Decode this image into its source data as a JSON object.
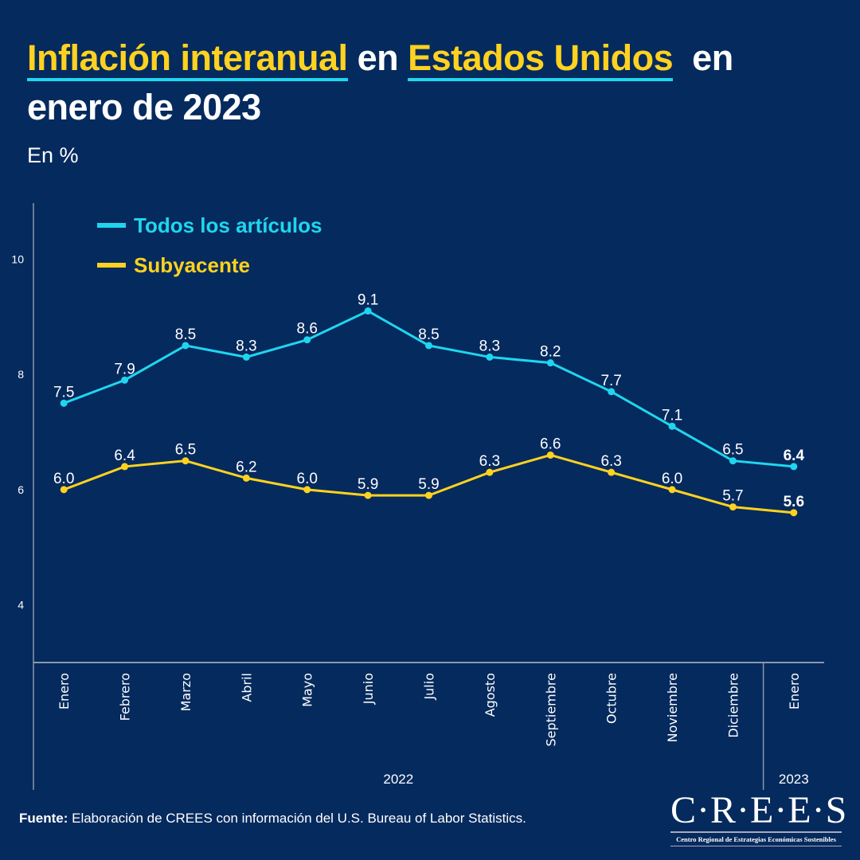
{
  "title": {
    "part1": "Inflación interanual",
    "part2": " en ",
    "part3": "Estados Unidos",
    "part4": "  en",
    "line2": "enero de 2023"
  },
  "subtitle": "En %",
  "source": {
    "label": "Fuente:",
    "text": " Elaboración de CREES con información del U.S. Bureau of Labor Statistics."
  },
  "logo": {
    "name": "C·R·E·E·S",
    "tagline": "Centro Regional de Estrategias Económicas Sostenibles"
  },
  "colors": {
    "background": "#052a5e",
    "all_items": "#1fd6ee",
    "core": "#ffd21f"
  },
  "chart_data": {
    "type": "line",
    "categories": [
      "Enero",
      "Febrero",
      "Marzo",
      "Abril",
      "Mayo",
      "Junio",
      "Julio",
      "Agosto",
      "Septiembre",
      "Octubre",
      "Noviembre",
      "Diciembre",
      "Enero"
    ],
    "year_groups": [
      {
        "label": "2022",
        "count": 12
      },
      {
        "label": "2023",
        "count": 1
      }
    ],
    "series": [
      {
        "name": "Todos los artículos",
        "color": "#1fd6ee",
        "values": [
          7.5,
          7.9,
          8.5,
          8.3,
          8.6,
          9.1,
          8.5,
          8.3,
          8.2,
          7.7,
          7.1,
          6.5,
          6.4
        ]
      },
      {
        "name": "Subyacente",
        "color": "#ffd21f",
        "values": [
          6.0,
          6.4,
          6.5,
          6.2,
          6.0,
          5.9,
          5.9,
          6.3,
          6.6,
          6.3,
          6.0,
          5.7,
          5.6
        ]
      }
    ],
    "yticks": [
      4,
      6,
      8,
      10
    ],
    "ylim": [
      3,
      11
    ],
    "grid": false,
    "legend": "top-left",
    "last_label_bold": true
  }
}
